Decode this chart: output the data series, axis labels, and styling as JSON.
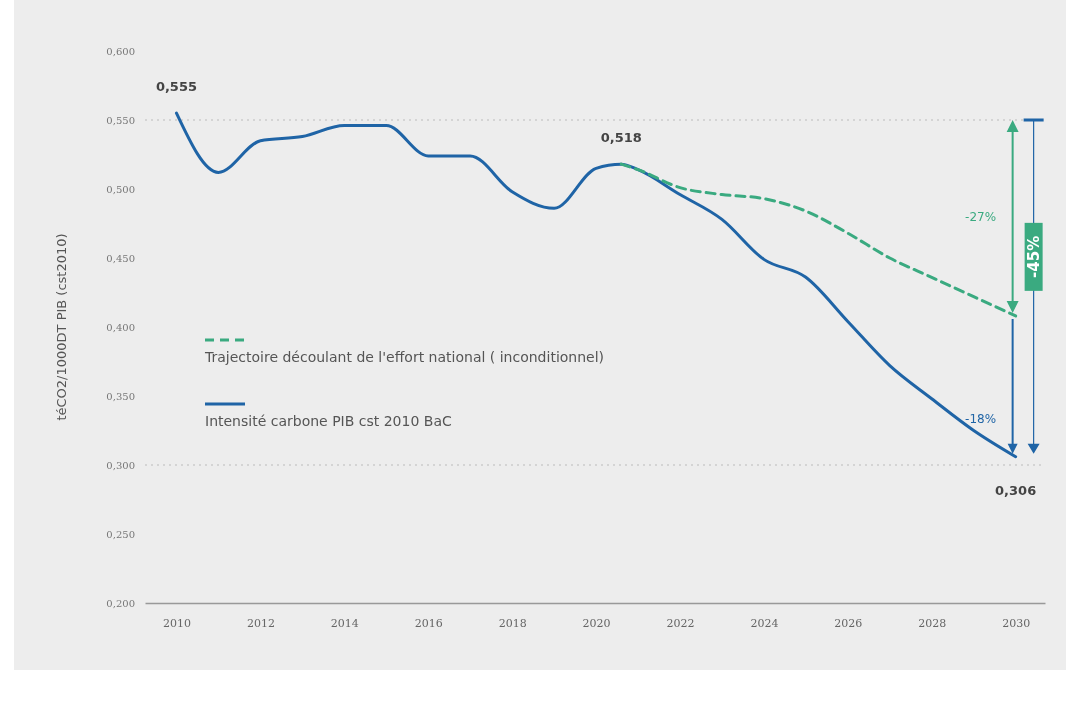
{
  "chart_data": {
    "type": "line",
    "ylabel": "téCO2/1000DT PIB (cst2010)",
    "xlim": [
      2009.25,
      2030.7
    ],
    "xticks": [
      2010,
      2012,
      2014,
      2016,
      2018,
      2020,
      2022,
      2024,
      2026,
      2028,
      2030
    ],
    "ylim": [
      0.2,
      0.6
    ],
    "yticks": [
      {
        "value": 0.2,
        "label": "0,200"
      },
      {
        "value": 0.25,
        "label": "0,250"
      },
      {
        "value": 0.3,
        "label": "0,300"
      },
      {
        "value": 0.35,
        "label": "0,350"
      },
      {
        "value": 0.4,
        "label": "0,400"
      },
      {
        "value": 0.45,
        "label": "0,450"
      },
      {
        "value": 0.5,
        "label": "0,500"
      },
      {
        "value": 0.55,
        "label": "0,550"
      },
      {
        "value": 0.6,
        "label": "0,600"
      }
    ],
    "grid": false,
    "legend": "left",
    "series": [
      {
        "name": "Trajectoire découlant de l'effort national ( inconditionnel)",
        "color": "#3aaa80",
        "line_style": "dashed",
        "x": [
          2020.6,
          2021,
          2022,
          2023,
          2024,
          2025,
          2026,
          2027,
          2028,
          2029,
          2030
        ],
        "values": [
          0.518,
          0.514,
          0.501,
          0.496,
          0.493,
          0.484,
          0.468,
          0.45,
          0.436,
          0.422,
          0.408
        ]
      },
      {
        "name": "Intensité carbone PIB cst 2010 BaC",
        "color": "#1f64a6",
        "line_style": "solid",
        "x": [
          2010,
          2011,
          2012,
          2013,
          2014,
          2015,
          2016,
          2017,
          2018,
          2019,
          2020,
          2020.6,
          2021,
          2022,
          2023,
          2024,
          2025,
          2026,
          2027,
          2028,
          2029,
          2030
        ],
        "values": [
          0.555,
          0.512,
          0.535,
          0.538,
          0.546,
          0.546,
          0.524,
          0.524,
          0.498,
          0.486,
          0.515,
          0.518,
          0.514,
          0.496,
          0.478,
          0.449,
          0.436,
          0.404,
          0.372,
          0.348,
          0.325,
          0.306
        ]
      }
    ],
    "ref_lines": [
      {
        "axis": "y",
        "value": 0.55,
        "line_style": "dotted"
      },
      {
        "axis": "y",
        "value": 0.3,
        "line_style": "dotted"
      }
    ],
    "annotations": [
      {
        "text": "0,555",
        "x": 2010,
        "y": 0.555
      },
      {
        "text": "0,518",
        "x": 2020.6,
        "y": 0.518
      },
      {
        "text": "0,306",
        "x": 2030,
        "y": 0.306
      },
      "-27%",
      "-18%",
      "-45%"
    ]
  }
}
